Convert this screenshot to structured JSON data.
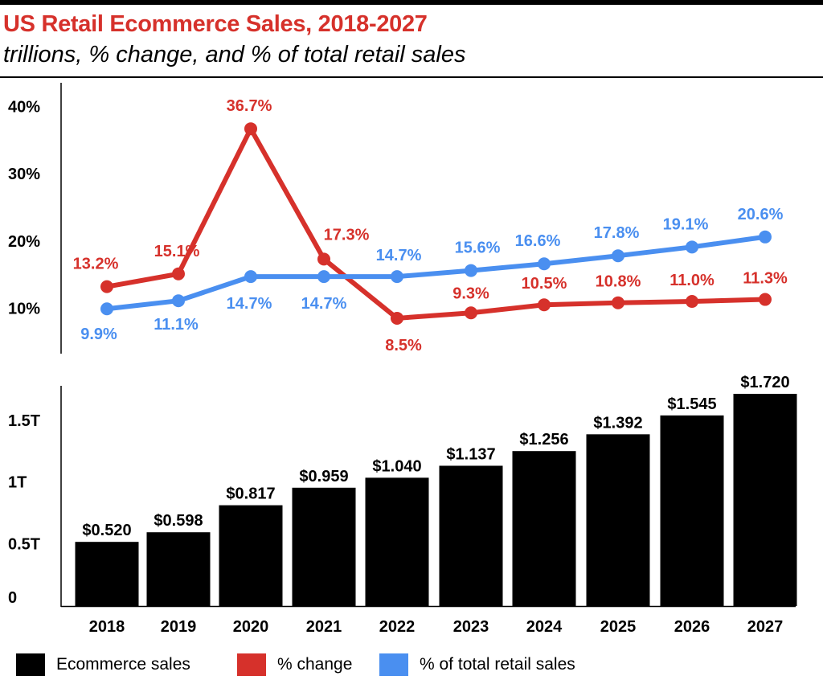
{
  "title": "US Retail Ecommerce Sales, 2018-2027",
  "subtitle": "trillions, % change, and % of total retail sales",
  "colors": {
    "title": "#d6312b",
    "change": "#d6312b",
    "share": "#4a8ff0",
    "bars": "#000000"
  },
  "chart_data": [
    {
      "type": "line",
      "categories": [
        "2018",
        "2019",
        "2020",
        "2021",
        "2022",
        "2023",
        "2024",
        "2025",
        "2026",
        "2027"
      ],
      "ylim": [
        0,
        40
      ],
      "yticks": [
        10,
        20,
        30,
        40
      ],
      "ytick_labels": [
        "10%",
        "20%",
        "30%",
        "40%"
      ],
      "series": [
        {
          "name": "% change",
          "color": "#d6312b",
          "values": [
            13.2,
            15.1,
            36.7,
            17.3,
            8.5,
            9.3,
            10.5,
            10.8,
            11.0,
            11.3
          ],
          "labels": [
            "13.2%",
            "15.1%",
            "36.7%",
            "17.3%",
            "8.5%",
            "9.3%",
            "10.5%",
            "10.8%",
            "11.0%",
            "11.3%"
          ]
        },
        {
          "name": "% of total retail sales",
          "color": "#4a8ff0",
          "values": [
            9.9,
            11.1,
            14.7,
            14.7,
            14.7,
            15.6,
            16.6,
            17.8,
            19.1,
            20.6
          ],
          "labels": [
            "9.9%",
            "11.1%",
            "14.7%",
            "14.7%",
            "14.7%",
            "15.6%",
            "16.6%",
            "17.8%",
            "19.1%",
            "20.6%"
          ]
        }
      ]
    },
    {
      "type": "bar",
      "categories": [
        "2018",
        "2019",
        "2020",
        "2021",
        "2022",
        "2023",
        "2024",
        "2025",
        "2026",
        "2027"
      ],
      "series": [
        {
          "name": "Ecommerce sales",
          "color": "#000000",
          "values": [
            0.52,
            0.598,
            0.817,
            0.959,
            1.04,
            1.137,
            1.256,
            1.392,
            1.545,
            1.72
          ],
          "labels": [
            "$0.520",
            "$0.598",
            "$0.817",
            "$0.959",
            "$1.040",
            "$1.137",
            "$1.256",
            "$1.392",
            "$1.545",
            "$1.720"
          ]
        }
      ],
      "ylim": [
        0,
        1.72
      ],
      "yticks": [
        0,
        0.5,
        1,
        1.5
      ],
      "ytick_labels": [
        "0",
        "0.5T",
        "1T",
        "1.5T"
      ]
    }
  ],
  "legend": [
    {
      "label": "Ecommerce sales",
      "color": "#000000"
    },
    {
      "label": "% change",
      "color": "#d6312b"
    },
    {
      "label": "% of total retail sales",
      "color": "#4a8ff0"
    }
  ]
}
